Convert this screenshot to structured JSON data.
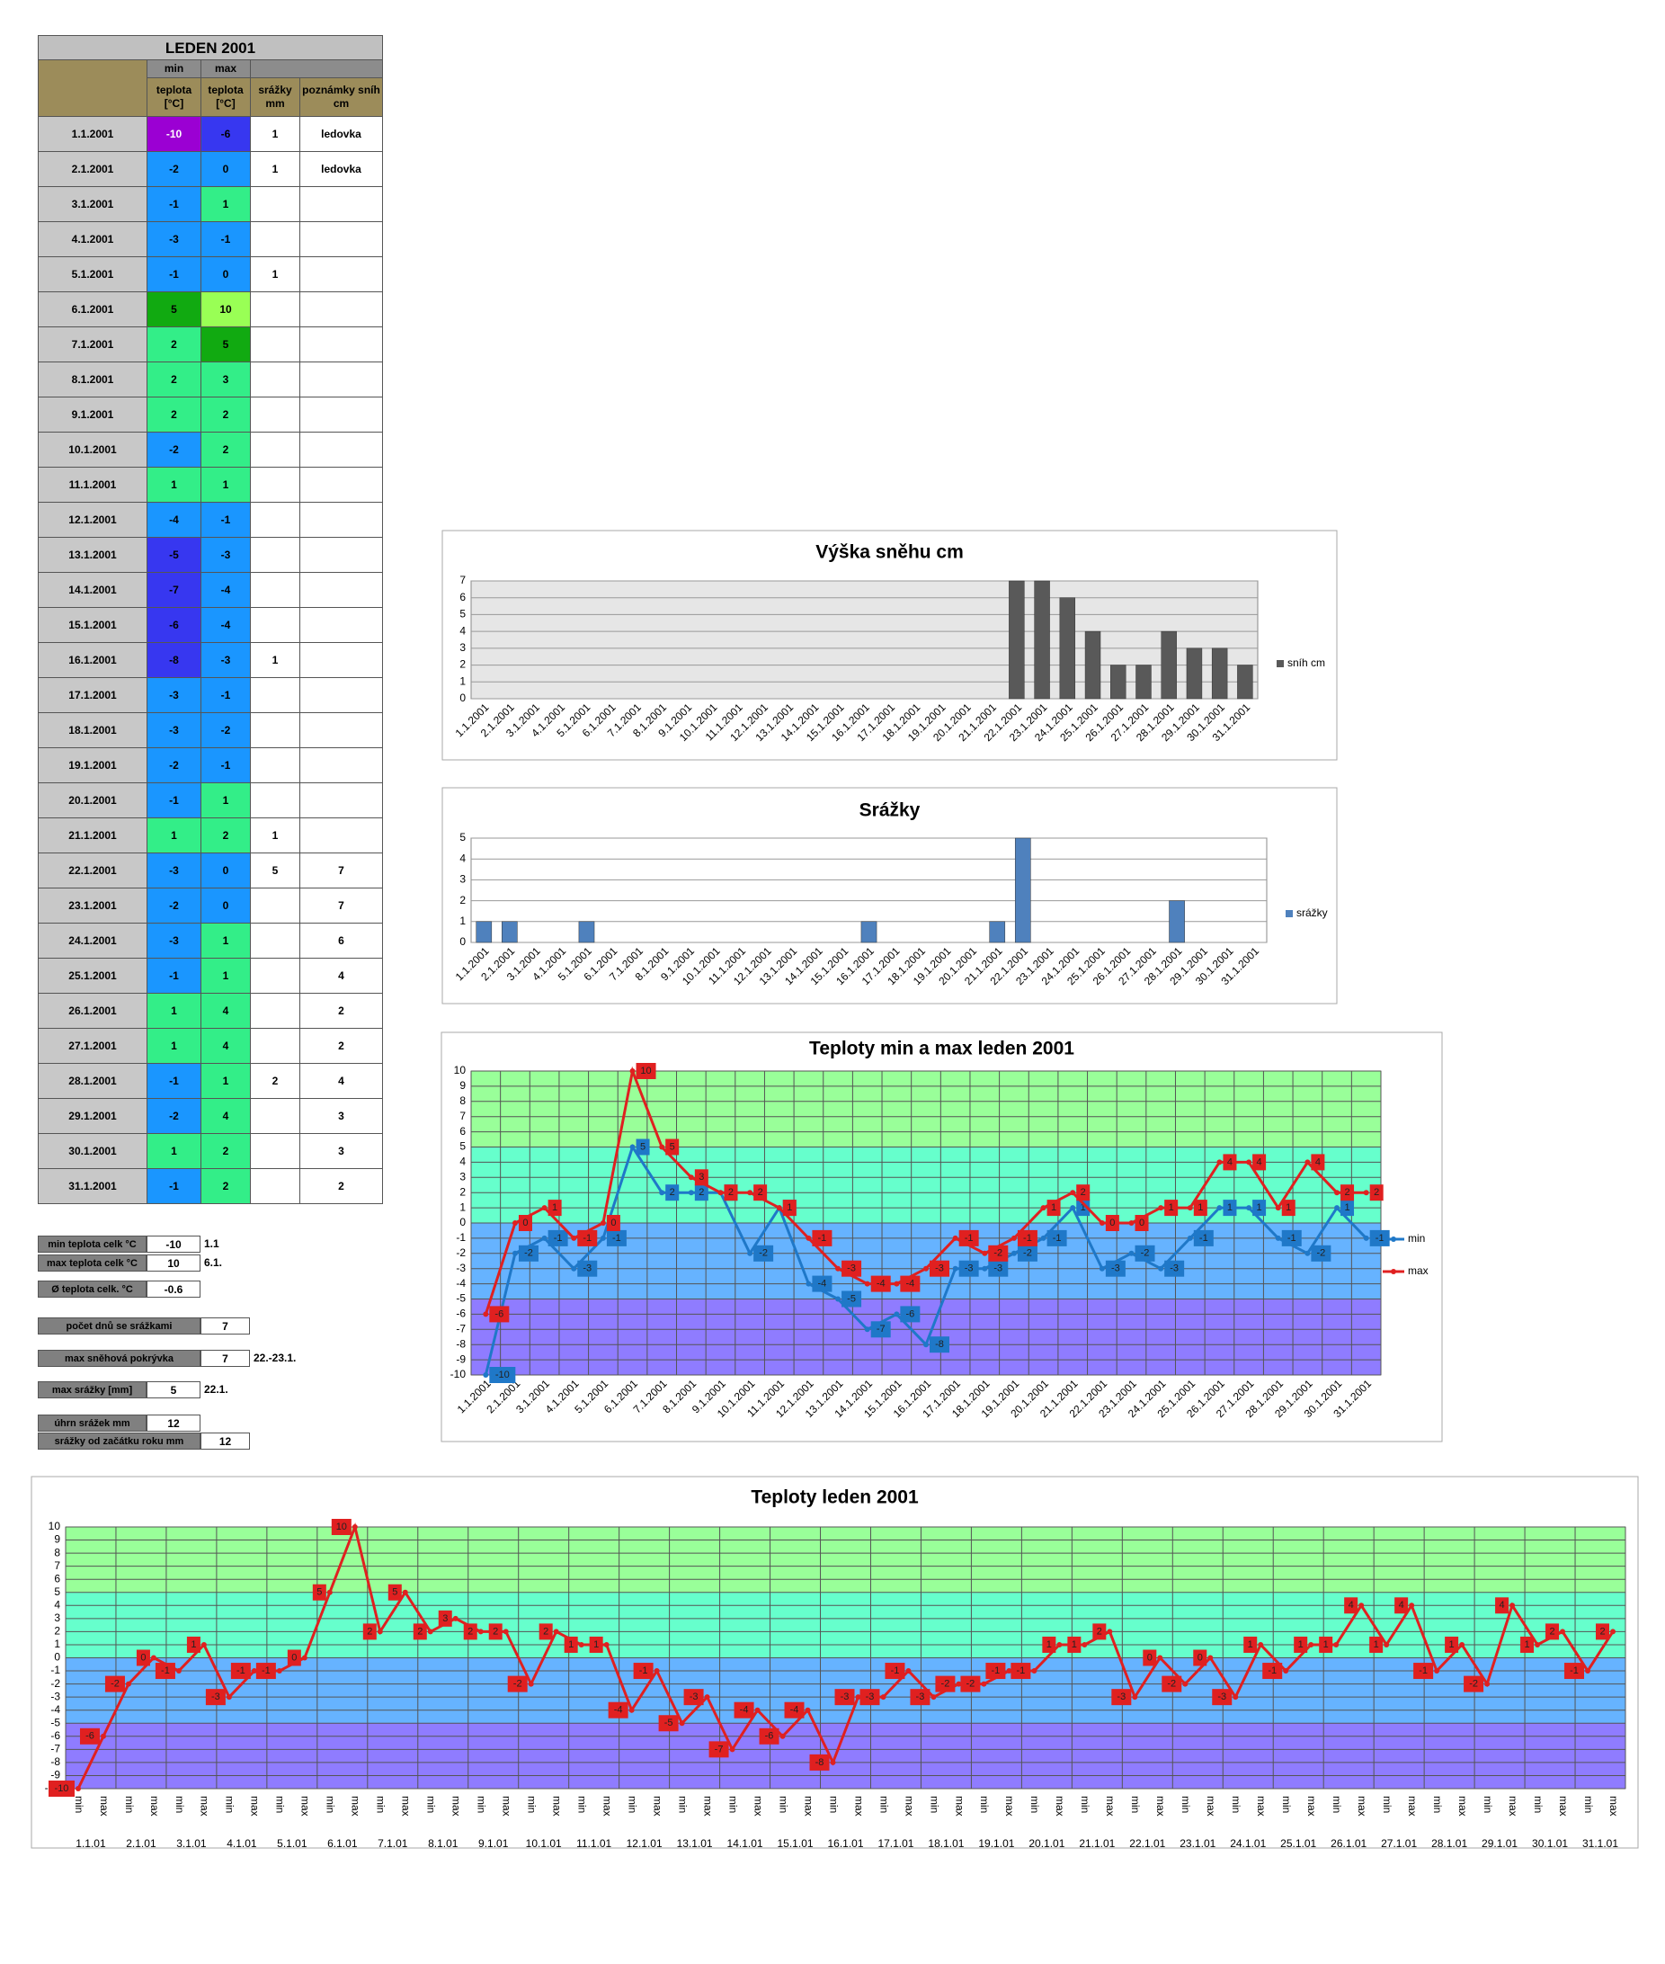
{
  "table": {
    "title": "LEDEN 2001",
    "header": {
      "top": [
        "min",
        "max"
      ],
      "sub": [
        "teplota [°C]",
        "teplota [°C]",
        "srážky mm",
        "poznámky sníh cm"
      ]
    },
    "rows": [
      [
        "1.1.2001",
        -10,
        -6,
        1,
        "ledovka"
      ],
      [
        "2.1.2001",
        -2,
        0,
        1,
        "ledovka"
      ],
      [
        "3.1.2001",
        -1,
        1,
        null,
        null
      ],
      [
        "4.1.2001",
        -3,
        -1,
        null,
        null
      ],
      [
        "5.1.2001",
        -1,
        0,
        1,
        null
      ],
      [
        "6.1.2001",
        5,
        10,
        null,
        null
      ],
      [
        "7.1.2001",
        2,
        5,
        null,
        null
      ],
      [
        "8.1.2001",
        2,
        3,
        null,
        null
      ],
      [
        "9.1.2001",
        2,
        2,
        null,
        null
      ],
      [
        "10.1.2001",
        -2,
        2,
        null,
        null
      ],
      [
        "11.1.2001",
        1,
        1,
        null,
        null
      ],
      [
        "12.1.2001",
        -4,
        -1,
        null,
        null
      ],
      [
        "13.1.2001",
        -5,
        -3,
        null,
        null
      ],
      [
        "14.1.2001",
        -7,
        -4,
        null,
        null
      ],
      [
        "15.1.2001",
        -6,
        -4,
        null,
        null
      ],
      [
        "16.1.2001",
        -8,
        -3,
        1,
        null
      ],
      [
        "17.1.2001",
        -3,
        -1,
        null,
        null
      ],
      [
        "18.1.2001",
        -3,
        -2,
        null,
        null
      ],
      [
        "19.1.2001",
        -2,
        -1,
        null,
        null
      ],
      [
        "20.1.2001",
        -1,
        1,
        null,
        null
      ],
      [
        "21.1.2001",
        1,
        2,
        1,
        null
      ],
      [
        "22.1.2001",
        -3,
        0,
        5,
        7
      ],
      [
        "23.1.2001",
        -2,
        0,
        null,
        7
      ],
      [
        "24.1.2001",
        -3,
        1,
        null,
        6
      ],
      [
        "25.1.2001",
        -1,
        1,
        null,
        4
      ],
      [
        "26.1.2001",
        1,
        4,
        null,
        2
      ],
      [
        "27.1.2001",
        1,
        4,
        null,
        2
      ],
      [
        "28.1.2001",
        -1,
        1,
        2,
        4
      ],
      [
        "29.1.2001",
        -2,
        4,
        null,
        3
      ],
      [
        "30.1.2001",
        1,
        2,
        null,
        3
      ],
      [
        "31.1.2001",
        -1,
        2,
        null,
        2
      ]
    ]
  },
  "summary": [
    {
      "label": "min teplota celk °C",
      "value": -10,
      "note": "1.1"
    },
    {
      "label": "max teplota celk °C",
      "value": 10,
      "note": "6.1."
    },
    {
      "label": "Ø teplota celk. °C",
      "value": -0.6
    },
    {
      "label": "počet dnů se srážkami",
      "value": 7
    },
    {
      "label": "max sněhová pokrývka",
      "value": 7,
      "note": "22.-23.1."
    },
    {
      "label": "max srážky [mm]",
      "value": 5,
      "note": "22.1."
    },
    {
      "label": "úhrn srážek  mm",
      "value": 12
    },
    {
      "label": "srážky od začátku roku mm",
      "value": 12
    }
  ],
  "chart_data": [
    {
      "type": "bar",
      "title": "Výška sněhu cm",
      "background": "#e6e6e6",
      "grid": true,
      "legend": "right",
      "categories": [
        "1.1.2001",
        "2.1.2001",
        "3.1.2001",
        "4.1.2001",
        "5.1.2001",
        "6.1.2001",
        "7.1.2001",
        "8.1.2001",
        "9.1.2001",
        "10.1.2001",
        "11.1.2001",
        "12.1.2001",
        "13.1.2001",
        "14.1.2001",
        "15.1.2001",
        "16.1.2001",
        "17.1.2001",
        "18.1.2001",
        "19.1.2001",
        "20.1.2001",
        "21.1.2001",
        "22.1.2001",
        "23.1.2001",
        "24.1.2001",
        "25.1.2001",
        "26.1.2001",
        "27.1.2001",
        "28.1.2001",
        "29.1.2001",
        "30.1.2001",
        "31.1.2001"
      ],
      "series": [
        {
          "name": "sníh cm",
          "color": "#595959",
          "values": [
            null,
            null,
            null,
            null,
            null,
            null,
            null,
            null,
            null,
            null,
            null,
            null,
            null,
            null,
            null,
            null,
            null,
            null,
            null,
            null,
            null,
            7,
            7,
            6,
            4,
            2,
            2,
            4,
            3,
            3,
            2
          ]
        }
      ],
      "ylim": [
        0,
        7
      ],
      "yticks": [
        0,
        1,
        2,
        3,
        4,
        5,
        6,
        7
      ]
    },
    {
      "type": "bar",
      "title": "Srážky",
      "background": "#ffffff",
      "grid": true,
      "legend": "right",
      "categories": [
        "1.1.2001",
        "2.1.2001",
        "3.1.2001",
        "4.1.2001",
        "5.1.2001",
        "6.1.2001",
        "7.1.2001",
        "8.1.2001",
        "9.1.2001",
        "10.1.2001",
        "11.1.2001",
        "12.1.2001",
        "13.1.2001",
        "14.1.2001",
        "15.1.2001",
        "16.1.2001",
        "17.1.2001",
        "18.1.2001",
        "19.1.2001",
        "20.1.2001",
        "21.1.2001",
        "22.1.2001",
        "23.1.2001",
        "24.1.2001",
        "25.1.2001",
        "26.1.2001",
        "27.1.2001",
        "28.1.2001",
        "29.1.2001",
        "30.1.2001",
        "31.1.2001"
      ],
      "series": [
        {
          "name": "srážky",
          "color": "#4f81bd",
          "values": [
            1,
            1,
            null,
            null,
            1,
            null,
            null,
            null,
            null,
            null,
            null,
            null,
            null,
            null,
            null,
            1,
            null,
            null,
            null,
            null,
            1,
            5,
            null,
            null,
            null,
            null,
            null,
            2,
            null,
            null,
            null
          ]
        }
      ],
      "ylim": [
        0,
        5
      ],
      "yticks": [
        0,
        1,
        2,
        3,
        4,
        5
      ]
    },
    {
      "type": "line",
      "title": "Teploty min a max leden 2001",
      "grid": true,
      "vgrid": true,
      "legend": "right",
      "data_labels": true,
      "bands": [
        {
          "from": 5,
          "to": 10,
          "color": "#99ff99"
        },
        {
          "from": 0,
          "to": 5,
          "color": "#66ffcc"
        },
        {
          "from": -5,
          "to": 0,
          "color": "#66b3ff"
        },
        {
          "from": -10,
          "to": -5,
          "color": "#8f7cff"
        }
      ],
      "categories": [
        "1.1.2001",
        "2.1.2001",
        "3.1.2001",
        "4.1.2001",
        "5.1.2001",
        "6.1.2001",
        "7.1.2001",
        "8.1.2001",
        "9.1.2001",
        "10.1.2001",
        "11.1.2001",
        "12.1.2001",
        "13.1.2001",
        "14.1.2001",
        "15.1.2001",
        "16.1.2001",
        "17.1.2001",
        "18.1.2001",
        "19.1.2001",
        "20.1.2001",
        "21.1.2001",
        "22.1.2001",
        "23.1.2001",
        "24.1.2001",
        "25.1.2001",
        "26.1.2001",
        "27.1.2001",
        "28.1.2001",
        "29.1.2001",
        "30.1.2001",
        "31.1.2001"
      ],
      "series": [
        {
          "name": "min",
          "color": "#1f78c8",
          "values": [
            -10,
            -2,
            -1,
            -3,
            -1,
            5,
            2,
            2,
            2,
            -2,
            1,
            -4,
            -5,
            -7,
            -6,
            -8,
            -3,
            -3,
            -2,
            -1,
            1,
            -3,
            -2,
            -3,
            -1,
            1,
            1,
            -1,
            -2,
            1,
            -1
          ]
        },
        {
          "name": "max",
          "color": "#e02020",
          "values": [
            -6,
            0,
            1,
            -1,
            0,
            10,
            5,
            3,
            2,
            2,
            1,
            -1,
            -3,
            -4,
            -4,
            -3,
            -1,
            -2,
            -1,
            1,
            2,
            0,
            0,
            1,
            1,
            4,
            4,
            1,
            4,
            2,
            2
          ]
        }
      ],
      "ylim": [
        -10,
        10
      ],
      "yticks": [
        -10,
        -9,
        -8,
        -7,
        -6,
        -5,
        -4,
        -3,
        -2,
        -1,
        0,
        1,
        2,
        3,
        4,
        5,
        6,
        7,
        8,
        9,
        10
      ]
    },
    {
      "type": "line",
      "title": "Teploty leden 2001",
      "grid": true,
      "vgrid": true,
      "data_labels": true,
      "bands": [
        {
          "from": 5,
          "to": 10,
          "color": "#99ff99"
        },
        {
          "from": 0,
          "to": 5,
          "color": "#66ffcc"
        },
        {
          "from": -5,
          "to": 0,
          "color": "#66b3ff"
        },
        {
          "from": -10,
          "to": -5,
          "color": "#8f7cff"
        }
      ],
      "categories": [
        "min",
        "max",
        "min",
        "max",
        "min",
        "max",
        "min",
        "max",
        "min",
        "max",
        "min",
        "max",
        "min",
        "max",
        "min",
        "max",
        "min",
        "max",
        "min",
        "max",
        "min",
        "max",
        "min",
        "max",
        "min",
        "max",
        "min",
        "max",
        "min",
        "max",
        "min",
        "max",
        "min",
        "max",
        "min",
        "max",
        "min",
        "max",
        "min",
        "max",
        "min",
        "max",
        "min",
        "max",
        "min",
        "max",
        "min",
        "max",
        "min",
        "max",
        "min",
        "max",
        "min",
        "max",
        "min",
        "max",
        "min",
        "max",
        "min",
        "max",
        "min",
        "max"
      ],
      "groups": [
        "1.1.01",
        "2.1.01",
        "3.1.01",
        "4.1.01",
        "5.1.01",
        "6.1.01",
        "7.1.01",
        "8.1.01",
        "9.1.01",
        "10.1.01",
        "11.1.01",
        "12.1.01",
        "13.1.01",
        "14.1.01",
        "15.1.01",
        "16.1.01",
        "17.1.01",
        "18.1.01",
        "19.1.01",
        "20.1.01",
        "21.1.01",
        "22.1.01",
        "23.1.01",
        "24.1.01",
        "25.1.01",
        "26.1.01",
        "27.1.01",
        "28.1.01",
        "29.1.01",
        "30.1.01",
        "31.1.01"
      ],
      "series": [
        {
          "color": "#e02020",
          "values": [
            -10,
            -6,
            -2,
            0,
            -1,
            1,
            -3,
            -1,
            -1,
            0,
            5,
            10,
            2,
            5,
            2,
            3,
            2,
            2,
            -2,
            2,
            1,
            1,
            -4,
            -1,
            -5,
            -3,
            -7,
            -4,
            -6,
            -4,
            -8,
            -3,
            -3,
            -1,
            -3,
            -2,
            -2,
            -1,
            -1,
            1,
            1,
            2,
            -3,
            0,
            -2,
            0,
            -3,
            1,
            -1,
            1,
            1,
            4,
            1,
            4,
            -1,
            1,
            -2,
            4,
            1,
            2,
            -1,
            2
          ]
        }
      ],
      "ylim": [
        -10,
        10
      ],
      "yticks": [
        -10,
        -9,
        -8,
        -7,
        -6,
        -5,
        -4,
        -3,
        -2,
        -1,
        0,
        1,
        2,
        3,
        4,
        5,
        6,
        7,
        8,
        9,
        10
      ]
    }
  ]
}
